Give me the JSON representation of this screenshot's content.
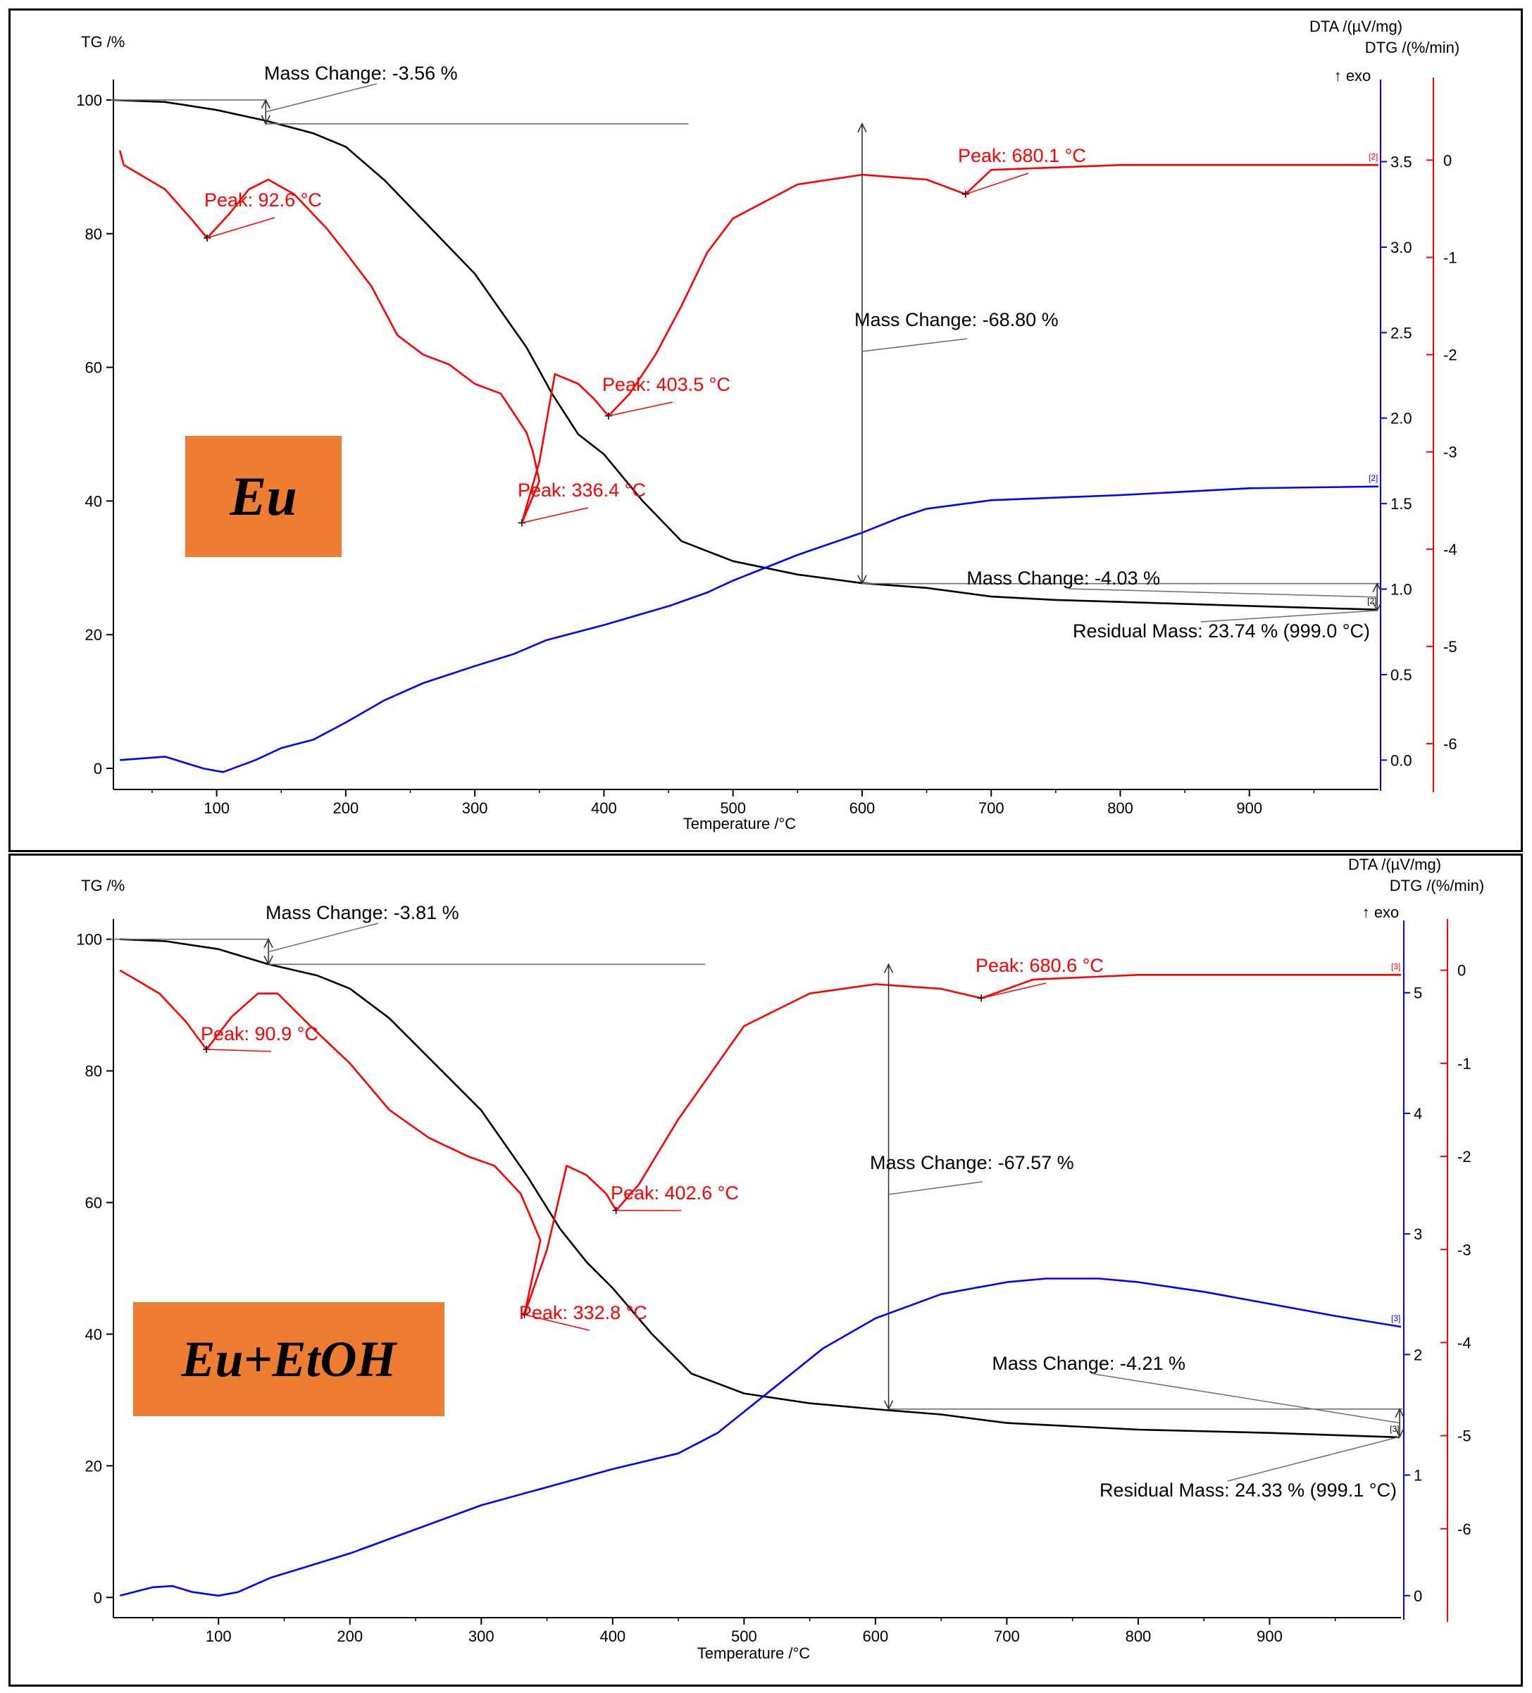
{
  "colors": {
    "tg": "#000000",
    "dta": "#0000ff",
    "dtg": "#ff0000",
    "badge": "#ED7D31",
    "ref": "#6e6e6e"
  },
  "chart_data": [
    {
      "type": "line",
      "badge": "Eu",
      "xlabel": "Temperature /°C",
      "xlim": [
        20,
        1000
      ],
      "xticks": [
        100,
        200,
        300,
        400,
        500,
        600,
        700,
        800,
        900
      ],
      "tg_axis": {
        "label": "TG /%",
        "lim": [
          -2,
          102
        ],
        "ticks": [
          0,
          20,
          40,
          60,
          80,
          100
        ]
      },
      "dta_axis": {
        "label": "DTA /(µV/mg)",
        "exo": "↑ exo",
        "lim": [
          -0.18,
          3.98
        ],
        "ticks": [
          0.0,
          0.5,
          1.0,
          1.5,
          2.0,
          2.5,
          3.0,
          3.5
        ],
        "tick_text": [
          "0.0",
          "0.5",
          "1.0",
          "1.5",
          "2.0",
          "2.5",
          "3.0",
          "3.5"
        ]
      },
      "dtg_axis": {
        "label": "DTG /(%/min)",
        "lim": [
          -6.5,
          0.85
        ],
        "ticks": [
          0,
          -1,
          -2,
          -3,
          -4,
          -5,
          -6
        ]
      },
      "series": [
        {
          "axis": "tg",
          "points": [
            [
              20,
              100
            ],
            [
              60,
              99.7
            ],
            [
              100,
              98.5
            ],
            [
              138,
              96.9
            ],
            [
              175,
              95
            ],
            [
              200,
              93
            ],
            [
              230,
              88
            ],
            [
              260,
              82
            ],
            [
              300,
              74
            ],
            [
              340,
              63
            ],
            [
              360,
              56
            ],
            [
              380,
              50
            ],
            [
              400,
              47
            ],
            [
              430,
              40
            ],
            [
              460,
              34
            ],
            [
              500,
              31
            ],
            [
              550,
              29
            ],
            [
              600,
              27.7
            ],
            [
              650,
              27
            ],
            [
              700,
              25.7
            ],
            [
              750,
              25.2
            ],
            [
              800,
              24.9
            ],
            [
              900,
              24.3
            ],
            [
              999,
              23.74
            ]
          ]
        },
        {
          "axis": "dta",
          "points": [
            [
              25,
              0.0
            ],
            [
              60,
              0.02
            ],
            [
              90,
              -0.05
            ],
            [
              105,
              -0.07
            ],
            [
              130,
              0.0
            ],
            [
              150,
              0.07
            ],
            [
              175,
              0.12
            ],
            [
              200,
              0.22
            ],
            [
              230,
              0.35
            ],
            [
              260,
              0.45
            ],
            [
              300,
              0.55
            ],
            [
              330,
              0.62
            ],
            [
              355,
              0.7
            ],
            [
              400,
              0.79
            ],
            [
              450,
              0.9
            ],
            [
              480,
              0.98
            ],
            [
              500,
              1.05
            ],
            [
              550,
              1.2
            ],
            [
              600,
              1.33
            ],
            [
              630,
              1.42
            ],
            [
              650,
              1.47
            ],
            [
              700,
              1.52
            ],
            [
              800,
              1.55
            ],
            [
              900,
              1.59
            ],
            [
              1000,
              1.6
            ]
          ]
        },
        {
          "axis": "dtg",
          "points": [
            [
              25,
              0.1
            ],
            [
              28,
              -0.05
            ],
            [
              60,
              -0.3
            ],
            [
              80,
              -0.6
            ],
            [
              92.6,
              -0.8
            ],
            [
              110,
              -0.55
            ],
            [
              125,
              -0.3
            ],
            [
              140,
              -0.2
            ],
            [
              160,
              -0.35
            ],
            [
              185,
              -0.7
            ],
            [
              200,
              -0.95
            ],
            [
              220,
              -1.3
            ],
            [
              240,
              -1.8
            ],
            [
              260,
              -2.0
            ],
            [
              280,
              -2.1
            ],
            [
              300,
              -2.3
            ],
            [
              320,
              -2.4
            ],
            [
              330,
              -2.6
            ],
            [
              340,
              -2.8
            ],
            [
              345,
              -3.0
            ],
            [
              350,
              -3.3
            ],
            [
              336.4,
              -3.73
            ],
            [
              350,
              -3.1
            ],
            [
              358,
              -2.5
            ],
            [
              362,
              -2.2
            ],
            [
              380,
              -2.3
            ],
            [
              392,
              -2.45
            ],
            [
              403.5,
              -2.63
            ],
            [
              420,
              -2.4
            ],
            [
              440,
              -2.0
            ],
            [
              460,
              -1.5
            ],
            [
              480,
              -0.95
            ],
            [
              500,
              -0.6
            ],
            [
              550,
              -0.25
            ],
            [
              600,
              -0.15
            ],
            [
              650,
              -0.2
            ],
            [
              680.1,
              -0.35
            ],
            [
              700,
              -0.1
            ],
            [
              800,
              -0.05
            ],
            [
              1000,
              -0.05
            ]
          ]
        }
      ],
      "peaks": [
        {
          "series": "dtg",
          "x": 92.6,
          "label": "Peak: 92.6 °C"
        },
        {
          "series": "dtg",
          "x": 336.4,
          "label": "Peak: 336.4 °C"
        },
        {
          "series": "dtg",
          "x": 403.5,
          "label": "Peak: 403.5 °C"
        },
        {
          "series": "dtg",
          "x": 680.1,
          "label": "Peak: 680.1 °C"
        }
      ],
      "mass_changes": [
        {
          "label": "Mass Change: -3.56 %",
          "x": 138,
          "from": 100,
          "to": 96.44
        },
        {
          "label": "Mass Change: -68.80 %",
          "x": 600,
          "from": 96.44,
          "to": 27.64
        },
        {
          "label": "Mass Change: -4.03 %",
          "x": 999,
          "from": 27.64,
          "to": 23.61
        }
      ],
      "residual_mass": "Residual Mass: 23.74 % (999.0 °C)",
      "curve_markers": [
        "[2]",
        "[2]",
        "[2]"
      ]
    },
    {
      "type": "line",
      "badge": "Eu+EtOH",
      "xlabel": "Temperature /°C",
      "xlim": [
        20,
        1000
      ],
      "xticks": [
        100,
        200,
        300,
        400,
        500,
        600,
        700,
        800,
        900
      ],
      "tg_axis": {
        "label": "TG /%",
        "lim": [
          -2,
          102
        ],
        "ticks": [
          0,
          20,
          40,
          60,
          80,
          100
        ]
      },
      "dta_axis": {
        "label": "DTA /(µV/mg)",
        "exo": "↑ exo",
        "lim": [
          -0.2,
          5.6
        ],
        "ticks": [
          0,
          1,
          2,
          3,
          4,
          5
        ],
        "tick_text": [
          "0",
          "1",
          "2",
          "3",
          "4",
          "5"
        ]
      },
      "dtg_axis": {
        "label": "DTG /(%/min)",
        "lim": [
          -7.0,
          0.55
        ],
        "ticks": [
          0,
          -1,
          -2,
          -3,
          -4,
          -5,
          -6
        ]
      },
      "series": [
        {
          "axis": "tg",
          "points": [
            [
              25,
              100
            ],
            [
              60,
              99.7
            ],
            [
              100,
              98.5
            ],
            [
              138,
              96.2
            ],
            [
              175,
              94.5
            ],
            [
              200,
              92.5
            ],
            [
              230,
              88
            ],
            [
              260,
              82
            ],
            [
              300,
              74
            ],
            [
              335,
              64
            ],
            [
              360,
              56
            ],
            [
              380,
              51
            ],
            [
              400,
              47
            ],
            [
              430,
              40
            ],
            [
              460,
              34
            ],
            [
              500,
              31
            ],
            [
              550,
              29.5
            ],
            [
              600,
              28.6
            ],
            [
              650,
              27.8
            ],
            [
              700,
              26.5
            ],
            [
              800,
              25.5
            ],
            [
              900,
              25
            ],
            [
              999,
              24.33
            ]
          ]
        },
        {
          "axis": "dta",
          "points": [
            [
              25,
              0.0
            ],
            [
              50,
              0.07
            ],
            [
              65,
              0.08
            ],
            [
              80,
              0.03
            ],
            [
              100,
              0.0
            ],
            [
              115,
              0.03
            ],
            [
              140,
              0.15
            ],
            [
              170,
              0.25
            ],
            [
              200,
              0.35
            ],
            [
              250,
              0.55
            ],
            [
              300,
              0.75
            ],
            [
              350,
              0.9
            ],
            [
              400,
              1.05
            ],
            [
              450,
              1.18
            ],
            [
              480,
              1.35
            ],
            [
              520,
              1.7
            ],
            [
              560,
              2.05
            ],
            [
              600,
              2.3
            ],
            [
              650,
              2.5
            ],
            [
              700,
              2.6
            ],
            [
              730,
              2.63
            ],
            [
              770,
              2.63
            ],
            [
              800,
              2.6
            ],
            [
              850,
              2.52
            ],
            [
              900,
              2.42
            ],
            [
              950,
              2.32
            ],
            [
              1000,
              2.23
            ]
          ]
        },
        {
          "axis": "dtg",
          "points": [
            [
              25,
              0.0
            ],
            [
              55,
              -0.25
            ],
            [
              75,
              -0.55
            ],
            [
              90.9,
              -0.85
            ],
            [
              110,
              -0.5
            ],
            [
              130,
              -0.25
            ],
            [
              145,
              -0.25
            ],
            [
              170,
              -0.6
            ],
            [
              200,
              -1.0
            ],
            [
              230,
              -1.5
            ],
            [
              260,
              -1.8
            ],
            [
              290,
              -2.0
            ],
            [
              310,
              -2.1
            ],
            [
              330,
              -2.4
            ],
            [
              345,
              -2.9
            ],
            [
              332.8,
              -3.7
            ],
            [
              350,
              -3.0
            ],
            [
              365,
              -2.1
            ],
            [
              380,
              -2.2
            ],
            [
              395,
              -2.4
            ],
            [
              402.6,
              -2.58
            ],
            [
              420,
              -2.3
            ],
            [
              450,
              -1.6
            ],
            [
              480,
              -1.0
            ],
            [
              500,
              -0.6
            ],
            [
              550,
              -0.25
            ],
            [
              600,
              -0.15
            ],
            [
              650,
              -0.2
            ],
            [
              680.6,
              -0.3
            ],
            [
              720,
              -0.1
            ],
            [
              800,
              -0.05
            ],
            [
              1000,
              -0.05
            ]
          ]
        }
      ],
      "peaks": [
        {
          "series": "dtg",
          "x": 90.9,
          "label": "Peak: 90.9 °C"
        },
        {
          "series": "dtg",
          "x": 332.8,
          "label": "Peak: 332.8 °C"
        },
        {
          "series": "dtg",
          "x": 402.6,
          "label": "Peak: 402.6 °C"
        },
        {
          "series": "dtg",
          "x": 680.6,
          "label": "Peak: 680.6 °C"
        }
      ],
      "mass_changes": [
        {
          "label": "Mass Change: -3.81 %",
          "x": 138,
          "from": 100,
          "to": 96.19
        },
        {
          "label": "Mass Change: -67.57 %",
          "x": 610,
          "from": 96.19,
          "to": 28.62
        },
        {
          "label": "Mass Change: -4.21 %",
          "x": 999,
          "from": 28.62,
          "to": 24.41
        }
      ],
      "residual_mass": "Residual Mass: 24.33 % (999.1 °C)",
      "curve_markers": [
        "[3]",
        "[3]",
        "[3]"
      ]
    }
  ]
}
